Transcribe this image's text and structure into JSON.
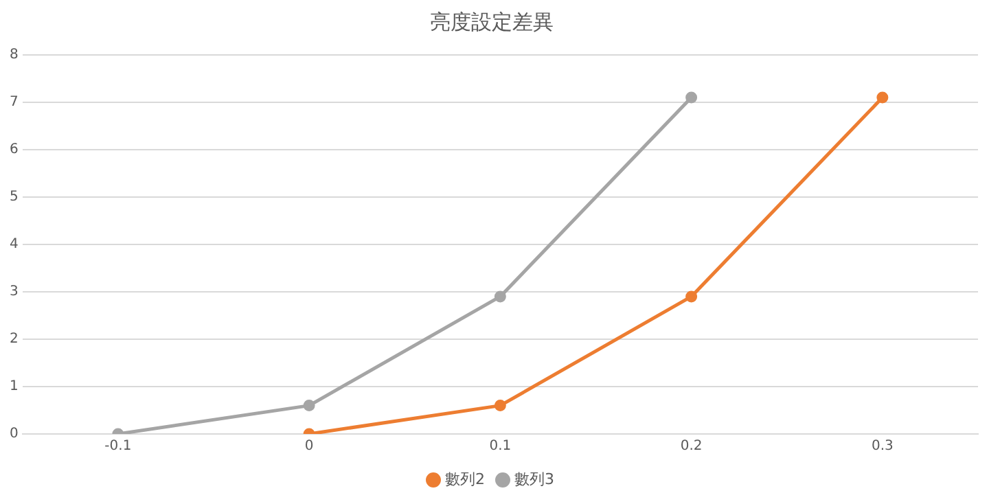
{
  "chart_data": {
    "type": "line",
    "title": "亮度設定差異",
    "series": [
      {
        "name": "數列2",
        "color": "#ed7d31",
        "x": [
          0,
          0.1,
          0.2,
          0.3
        ],
        "values": [
          0,
          0.6,
          2.9,
          7.1
        ]
      },
      {
        "name": "數列3",
        "color": "#a5a5a5",
        "x": [
          -0.1,
          0,
          0.1,
          0.2
        ],
        "values": [
          0,
          0.6,
          2.9,
          7.1
        ]
      }
    ],
    "xlim": [
      -0.15,
      0.35
    ],
    "xticks": [
      -0.1,
      0,
      0.1,
      0.2,
      0.3
    ],
    "ylim": [
      0,
      8
    ],
    "yticks": [
      0,
      1,
      2,
      3,
      4,
      5,
      6,
      7,
      8
    ],
    "grid": "y",
    "legend": "bottom",
    "marker": "circle",
    "line_style": "solid"
  }
}
